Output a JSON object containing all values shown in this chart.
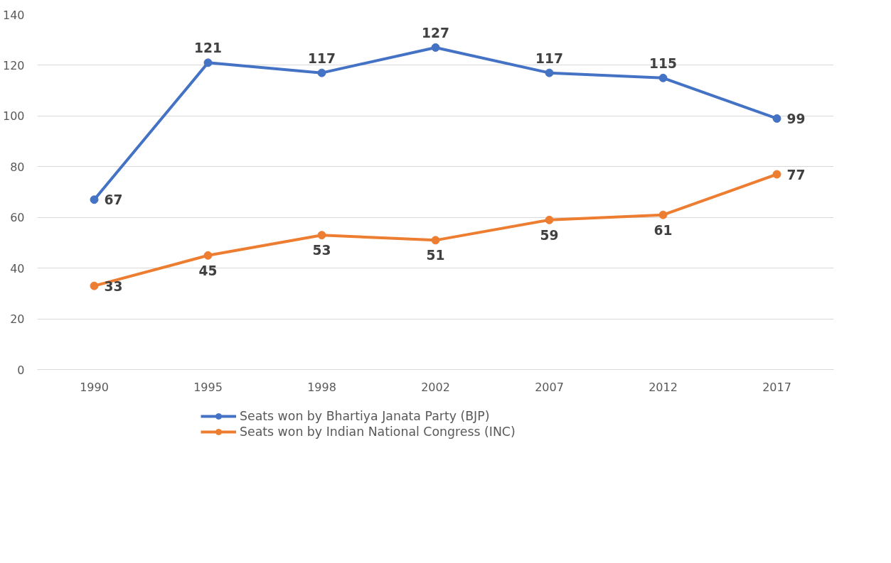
{
  "chart_data": {
    "type": "line",
    "categories": [
      "1990",
      "1995",
      "1998",
      "2002",
      "2007",
      "2012",
      "2017"
    ],
    "series": [
      {
        "name": "Seats won by Bhartiya Janata Party (BJP)",
        "color": "#4472c4",
        "values": [
          67,
          121,
          117,
          127,
          117,
          115,
          99
        ]
      },
      {
        "name": "Seats won by Indian National Congress (INC)",
        "color": "#ed7d31",
        "values": [
          33,
          45,
          53,
          51,
          59,
          61,
          77
        ]
      }
    ],
    "ylim": [
      0,
      140
    ],
    "yticks": [
      0,
      20,
      40,
      60,
      80,
      100,
      120,
      140
    ],
    "grid": "y",
    "legend": "bottom",
    "marker": "circle",
    "line_style": "solid",
    "data_labels": true
  }
}
